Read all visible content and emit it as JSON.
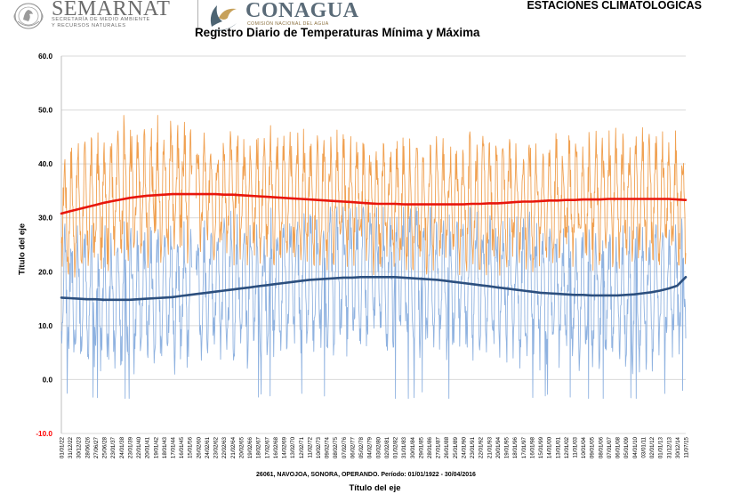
{
  "header": {
    "semarnat_name": "SEMARNAT",
    "semarnat_sub_line1": "SECRETARÍA DE MEDIO AMBIENTE",
    "semarnat_sub_line2": "Y RECURSOS NATURALES",
    "conagua_name": "CONAGUA",
    "conagua_sub": "COMISIÓN NACIONAL DEL AGUA",
    "top_right_title": "ESTACIONES CLIMATOLOGICAS"
  },
  "footer_note": "26061, NAVOJOA, SONORA, OPERANDO. Período: 01/01/1922 - 30/04/2016",
  "colors": {
    "max_series": "#f0a050",
    "min_series": "#8fb2e0",
    "max_trend": "#e8160c",
    "min_trend": "#2c4f7e",
    "grid": "#d9d9d9",
    "axis_text": "#000000",
    "negative_tick": "#ff0000"
  },
  "chart_data": {
    "type": "line",
    "title": "Registro Diario de Temperaturas Mínima y Máxima",
    "xlabel": "Título del eje",
    "ylabel": "Título del eje",
    "ylim": [
      -10,
      60
    ],
    "y_ticks": [
      "-10.0",
      "0.0",
      "10.0",
      "20.0",
      "30.0",
      "40.0",
      "50.0",
      "60.0"
    ],
    "grid": true,
    "legend": "none",
    "categories": [
      "01/01/22",
      "31/12/22",
      "30/12/23",
      "28/06/26",
      "27/06/27",
      "25/06/28",
      "23/01/37",
      "24/01/38",
      "23/01/39",
      "22/01/40",
      "20/01/41",
      "19/01/42",
      "18/01/43",
      "17/01/44",
      "16/01/45",
      "15/01/56",
      "26/02/60",
      "24/02/61",
      "23/02/62",
      "22/02/63",
      "21/02/64",
      "20/02/65",
      "19/02/66",
      "18/02/67",
      "17/02/67",
      "16/02/68",
      "14/02/69",
      "13/02/70",
      "12/02/71",
      "11/02/72",
      "10/02/73",
      "09/02/74",
      "08/02/75",
      "07/02/76",
      "06/02/77",
      "05/02/78",
      "04/02/79",
      "03/02/80",
      "02/02/81",
      "01/02/82",
      "31/01/83",
      "30/01/84",
      "29/01/85",
      "28/01/86",
      "27/01/87",
      "26/01/88",
      "25/01/89",
      "24/01/90",
      "23/01/91",
      "22/01/92",
      "21/01/93",
      "20/01/94",
      "19/01/95",
      "18/01/96",
      "17/01/97",
      "16/01/98",
      "15/01/99",
      "14/01/00",
      "13/01/01",
      "12/01/02",
      "11/01/03",
      "10/01/04",
      "09/01/05",
      "08/01/06",
      "07/01/07",
      "06/01/08",
      "05/01/09",
      "04/01/10",
      "03/01/11",
      "02/01/12",
      "01/01/13",
      "31/12/13",
      "30/12/14",
      "11/07/15"
    ],
    "series": [
      {
        "values": [
          30.8,
          31.2,
          31.6,
          32.0,
          32.4,
          32.8,
          33.1,
          33.4,
          33.7,
          33.9,
          34.1,
          34.2,
          34.3,
          34.4,
          34.4,
          34.4,
          34.4,
          34.4,
          34.4,
          34.3,
          34.3,
          34.2,
          34.1,
          34.0,
          33.9,
          33.8,
          33.7,
          33.6,
          33.5,
          33.4,
          33.3,
          33.2,
          33.1,
          33.0,
          32.9,
          32.8,
          32.7,
          32.6,
          32.6,
          32.6,
          32.5,
          32.5,
          32.5,
          32.5,
          32.5,
          32.5,
          32.5,
          32.5,
          32.6,
          32.6,
          32.7,
          32.7,
          32.8,
          32.9,
          33.0,
          33.0,
          33.1,
          33.2,
          33.2,
          33.3,
          33.3,
          33.4,
          33.4,
          33.4,
          33.5,
          33.5,
          33.5,
          33.5,
          33.5,
          33.5,
          33.5,
          33.5,
          33.4,
          33.3
        ]
      },
      {
        "values": [
          15.2,
          15.1,
          15.0,
          14.9,
          14.9,
          14.8,
          14.8,
          14.8,
          14.8,
          14.9,
          15.0,
          15.1,
          15.2,
          15.3,
          15.5,
          15.7,
          15.9,
          16.1,
          16.3,
          16.5,
          16.7,
          16.9,
          17.1,
          17.3,
          17.5,
          17.7,
          17.9,
          18.1,
          18.3,
          18.5,
          18.6,
          18.7,
          18.8,
          18.9,
          18.9,
          19.0,
          19.0,
          19.0,
          19.0,
          19.0,
          18.9,
          18.8,
          18.7,
          18.6,
          18.5,
          18.3,
          18.1,
          17.9,
          17.7,
          17.5,
          17.3,
          17.1,
          16.9,
          16.7,
          16.5,
          16.3,
          16.1,
          16.0,
          15.9,
          15.8,
          15.7,
          15.7,
          15.6,
          15.6,
          15.6,
          15.6,
          15.7,
          15.8,
          16.0,
          16.2,
          16.5,
          16.9,
          17.4,
          19.0
        ]
      }
    ]
  }
}
